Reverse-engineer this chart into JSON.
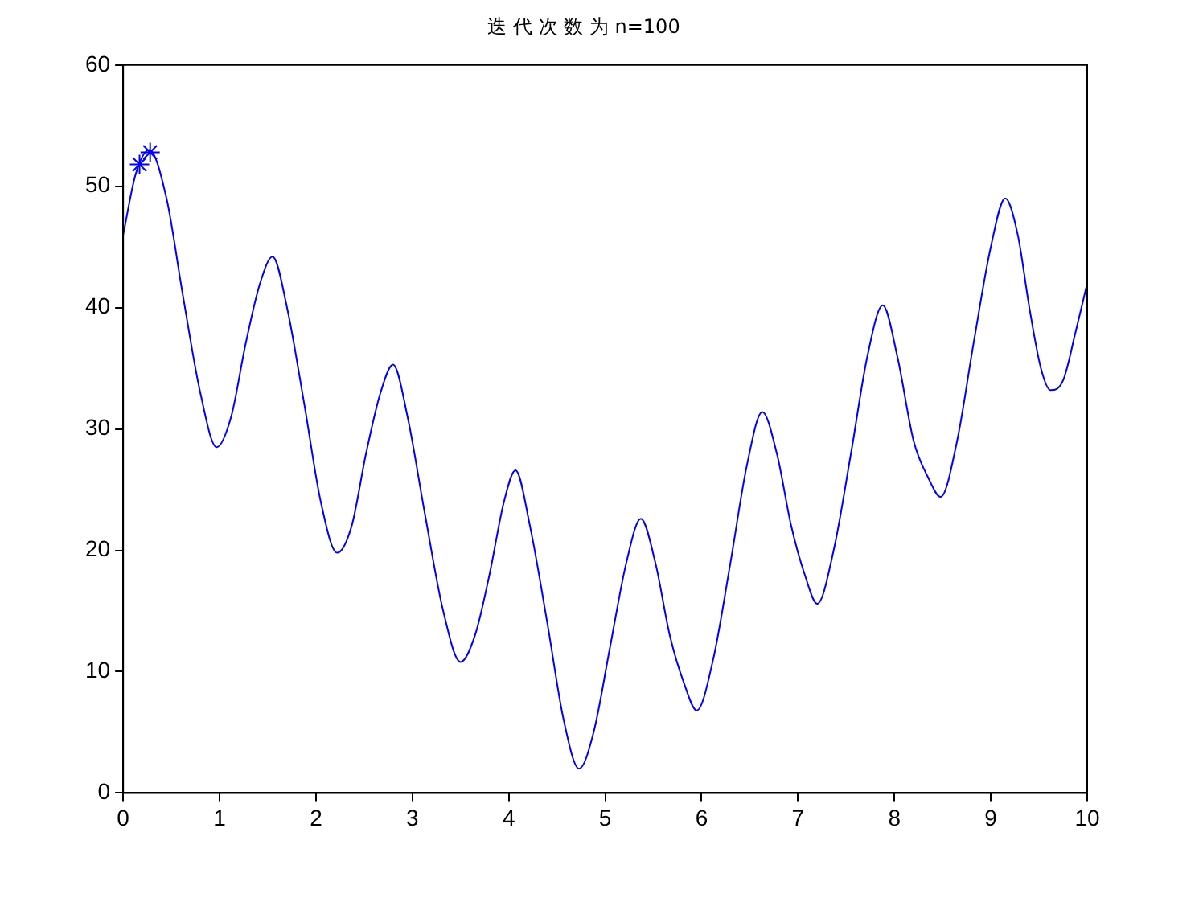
{
  "chart_data": {
    "type": "line",
    "title": "迭 代 次 数 为 n=100",
    "xlim": [
      0,
      10
    ],
    "xticks": [
      0,
      1,
      2,
      3,
      4,
      5,
      6,
      7,
      8,
      9,
      10
    ],
    "ylim": [
      0,
      60
    ],
    "yticks": [
      0,
      10,
      20,
      30,
      40,
      50,
      60
    ],
    "grid": false,
    "legend": false,
    "series": [
      {
        "type": "line",
        "color": "#0000ff",
        "marker": "none",
        "line_style": "solid",
        "x": [
          0,
          0.13,
          0.27,
          0.45,
          0.62,
          0.8,
          0.97,
          1.12,
          1.27,
          1.42,
          1.55,
          1.7,
          1.88,
          2.05,
          2.22,
          2.37,
          2.52,
          2.67,
          2.8,
          2.95,
          3.13,
          3.32,
          3.5,
          3.65,
          3.8,
          3.95,
          4.07,
          4.22,
          4.4,
          4.57,
          4.73,
          4.88,
          5.05,
          5.22,
          5.37,
          5.52,
          5.67,
          5.82,
          5.95,
          6.12,
          6.3,
          6.47,
          6.63,
          6.78,
          6.93,
          7.07,
          7.2,
          7.37,
          7.55,
          7.72,
          7.88,
          8.03,
          8.2,
          8.35,
          8.48,
          8.65,
          8.82,
          9.0,
          9.15,
          9.28,
          9.4,
          9.52,
          9.62,
          9.75,
          9.88,
          10
        ],
        "values": [
          46,
          51,
          53,
          49,
          41,
          33,
          28.5,
          31,
          37,
          42,
          44.2,
          40,
          32,
          24,
          19.8,
          22,
          28,
          33,
          35.3,
          31,
          23,
          15,
          10.8,
          13,
          18,
          24,
          26.6,
          22,
          14,
          6,
          2,
          5,
          12,
          19,
          22.6,
          19,
          13,
          9,
          6.8,
          11,
          19,
          27,
          31.4,
          28,
          22,
          18,
          15.6,
          20,
          28,
          36,
          40.2,
          36,
          29,
          26,
          24.4,
          29,
          37,
          45,
          49,
          46,
          40,
          35,
          33.2,
          34,
          38,
          42
        ]
      },
      {
        "type": "scatter",
        "color": "#0000ff",
        "marker": "cross",
        "x": [
          0.17,
          0.28
        ],
        "values": [
          51.8,
          52.8
        ]
      }
    ]
  }
}
